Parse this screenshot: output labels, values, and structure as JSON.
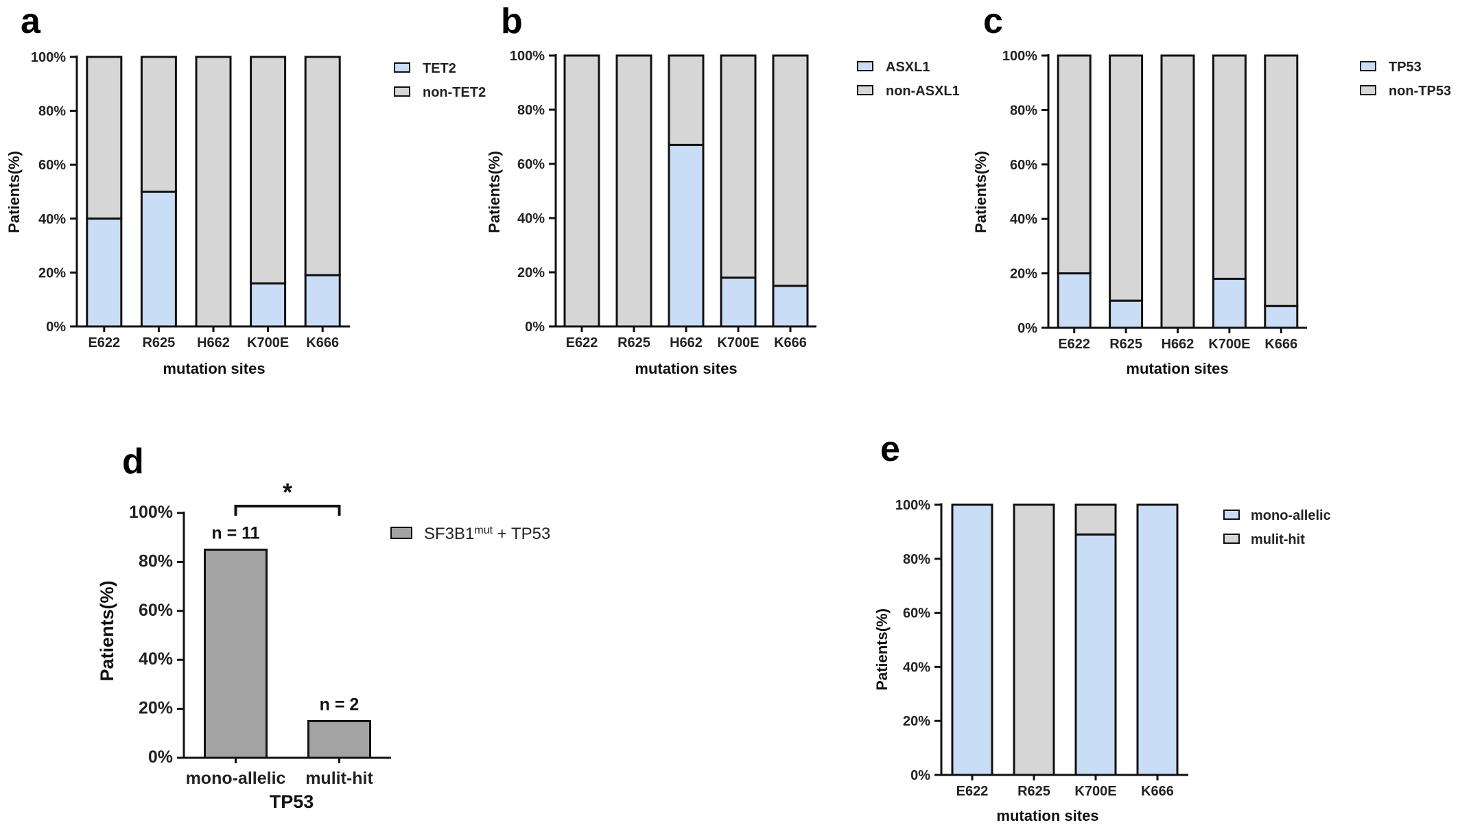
{
  "colors": {
    "mutant": "#c9ddf7",
    "non_mutant": "#d6d6d6",
    "tp53_combo": "#a3a3a3",
    "stroke": "#111111"
  },
  "chart_data": [
    {
      "id": "a",
      "type": "bar",
      "stacked": true,
      "panel_letter": "a",
      "categories": [
        "E622",
        "R625",
        "H662",
        "K700E",
        "K666"
      ],
      "series": [
        {
          "name": "TET2",
          "values": [
            40,
            50,
            0,
            16,
            19
          ],
          "color": "#c9ddf7"
        },
        {
          "name": "non-TET2",
          "values": [
            60,
            50,
            100,
            84,
            81
          ],
          "color": "#d6d6d6"
        }
      ],
      "xlabel": "mutation sites",
      "ylabel": "Patients(%)",
      "ylim": [
        0,
        100
      ],
      "yticks": [
        "0%",
        "20%",
        "40%",
        "60%",
        "80%",
        "100%"
      ],
      "grid": false,
      "legend": "right"
    },
    {
      "id": "b",
      "type": "bar",
      "stacked": true,
      "panel_letter": "b",
      "categories": [
        "E622",
        "R625",
        "H662",
        "K700E",
        "K666"
      ],
      "series": [
        {
          "name": "ASXL1",
          "values": [
            0,
            0,
            67,
            18,
            15
          ],
          "color": "#c9ddf7"
        },
        {
          "name": "non-ASXL1",
          "values": [
            100,
            100,
            33,
            82,
            85
          ],
          "color": "#d6d6d6"
        }
      ],
      "xlabel": "mutation sites",
      "ylabel": "Patients(%)",
      "ylim": [
        0,
        100
      ],
      "yticks": [
        "0%",
        "20%",
        "40%",
        "60%",
        "80%",
        "100%"
      ],
      "grid": false,
      "legend": "right"
    },
    {
      "id": "c",
      "type": "bar",
      "stacked": true,
      "panel_letter": "c",
      "categories": [
        "E622",
        "R625",
        "H662",
        "K700E",
        "K666"
      ],
      "series": [
        {
          "name": "TP53",
          "values": [
            20,
            10,
            0,
            18,
            8
          ],
          "color": "#c9ddf7"
        },
        {
          "name": "non-TP53",
          "values": [
            80,
            90,
            100,
            82,
            92
          ],
          "color": "#d6d6d6"
        }
      ],
      "xlabel": "mutation sites",
      "ylabel": "Patients(%)",
      "ylim": [
        0,
        100
      ],
      "yticks": [
        "0%",
        "20%",
        "40%",
        "60%",
        "80%",
        "100%"
      ],
      "grid": false,
      "legend": "right"
    },
    {
      "id": "d",
      "type": "bar",
      "stacked": false,
      "panel_letter": "d",
      "categories": [
        "mono-allelic",
        "mulit-hit"
      ],
      "series": [
        {
          "name": "SF3B1",
          "name_sup": "mut",
          "name_suffix": " + TP53",
          "values": [
            85,
            15
          ],
          "color": "#a3a3a3"
        }
      ],
      "bar_labels": [
        "n = 11",
        "n = 2"
      ],
      "significance": "*",
      "xlabel": "TP53",
      "ylabel": "Patients(%)",
      "ylim": [
        0,
        100
      ],
      "yticks": [
        "0%",
        "20%",
        "40%",
        "60%",
        "80%",
        "100%"
      ],
      "grid": false,
      "legend": "right"
    },
    {
      "id": "e",
      "type": "bar",
      "stacked": true,
      "panel_letter": "e",
      "categories": [
        "E622",
        "R625",
        "K700E",
        "K666"
      ],
      "series": [
        {
          "name": "mono-allelic",
          "values": [
            100,
            0,
            89,
            100
          ],
          "color": "#c9ddf7"
        },
        {
          "name": "mulit-hit",
          "values": [
            0,
            100,
            11,
            0
          ],
          "color": "#d6d6d6"
        }
      ],
      "xlabel": "mutation sites",
      "ylabel": "Patients(%)",
      "ylim": [
        0,
        100
      ],
      "yticks": [
        "0%",
        "20%",
        "40%",
        "60%",
        "80%",
        "100%"
      ],
      "grid": false,
      "legend": "right"
    }
  ]
}
